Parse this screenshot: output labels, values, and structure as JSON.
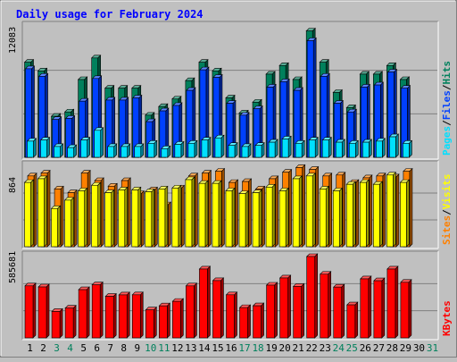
{
  "chart_data": {
    "type": "bar",
    "title": "Daily usage for February 2024",
    "days": [
      1,
      2,
      3,
      4,
      5,
      6,
      7,
      8,
      9,
      10,
      11,
      12,
      13,
      14,
      15,
      16,
      17,
      18,
      19,
      20,
      21,
      22,
      23,
      24,
      25,
      26,
      27,
      28,
      29,
      30,
      31
    ],
    "weekend_days": [
      3,
      4,
      10,
      11,
      17,
      18,
      24,
      25,
      31
    ],
    "colors": {
      "hits": "#00805c",
      "files": "#0040ff",
      "pages": "#00e0ff",
      "visits": "#ffff00",
      "sites": "#ff8000",
      "kbytes": "#ff0000",
      "title": "#0000ff",
      "weekday_label": "#000000",
      "weekend_label": "#00805c"
    },
    "panels": [
      {
        "id": "hits-files-pages",
        "max_label": "12083",
        "ymax": 12083,
        "legend": [
          {
            "text": "Pages",
            "color": "#00e0ff"
          },
          {
            "text": "/",
            "color": "#000000"
          },
          {
            "text": "Files",
            "color": "#0040ff"
          },
          {
            "text": "/",
            "color": "#000000"
          },
          {
            "text": "Hits",
            "color": "#00805c"
          }
        ],
        "series": [
          {
            "name": "Hits",
            "values": [
              8800,
              8000,
              3800,
              4200,
              7200,
              9200,
              6400,
              6400,
              6400,
              3900,
              4700,
              5400,
              7100,
              8800,
              8000,
              5500,
              4100,
              5100,
              7700,
              8500,
              7200,
              11700,
              8800,
              6000,
              4600,
              7700,
              7700,
              8500,
              7200
            ]
          },
          {
            "name": "Files",
            "values": [
              8200,
              7500,
              3500,
              3600,
              5200,
              7300,
              5300,
              5300,
              5500,
              3300,
              4300,
              4800,
              6200,
              8100,
              7400,
              5000,
              3900,
              4500,
              6500,
              7000,
              6200,
              10800,
              7500,
              5000,
              4200,
              6500,
              6700,
              7900,
              6400
            ]
          },
          {
            "name": "Pages",
            "values": [
              1500,
              1600,
              1000,
              900,
              1600,
              2500,
              1000,
              1000,
              1000,
              1300,
              800,
              1200,
              1300,
              1600,
              1800,
              1100,
              1000,
              1100,
              1400,
              1700,
              1300,
              1600,
              1600,
              1400,
              1300,
              1400,
              1500,
              1900,
              1300
            ]
          }
        ]
      },
      {
        "id": "visits-sites",
        "max_label": "864",
        "ymax": 864,
        "legend": [
          {
            "text": "Sites",
            "color": "#ff8000"
          },
          {
            "text": "/",
            "color": "#000000"
          },
          {
            "text": "Visits",
            "color": "#ffff00"
          }
        ],
        "series": [
          {
            "name": "Sites",
            "values": [
              760,
              790,
              620,
              580,
              790,
              710,
              650,
              710,
              570,
              610,
              450,
              630,
              760,
              790,
              810,
              690,
              700,
              620,
              730,
              800,
              850,
              830,
              760,
              770,
              690,
              740,
              760,
              750,
              810
            ]
          },
          {
            "name": "Visits",
            "values": [
              690,
              730,
              410,
              500,
              600,
              660,
              580,
              610,
              610,
              590,
              620,
              630,
              720,
              680,
              680,
              600,
              570,
              580,
              640,
              600,
              730,
              760,
              620,
              600,
              670,
              690,
              670,
              770,
              690
            ]
          }
        ]
      },
      {
        "id": "kbytes",
        "max_label": "585681",
        "ymax": 585681,
        "legend": [
          {
            "text": "KBytes",
            "color": "#ff0000"
          }
        ],
        "series": [
          {
            "name": "KBytes",
            "values": [
              374700,
              366800,
              190000,
              214500,
              347200,
              382000,
              299000,
              309500,
              310200,
              201700,
              230500,
              263000,
              374400,
              495800,
              412200,
              310200,
              218000,
              231000,
              379700,
              431500,
              370700,
              585681,
              458500,
              365800,
              237800,
              425000,
              411400,
              495800,
              400100
            ]
          }
        ]
      }
    ]
  }
}
